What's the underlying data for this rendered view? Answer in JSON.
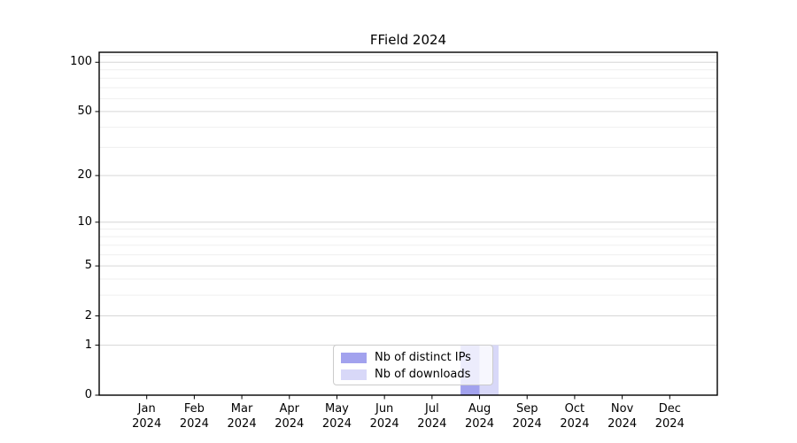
{
  "chart_data": {
    "type": "bar",
    "title": "FField 2024",
    "categories": [
      "Jan 2024",
      "Feb 2024",
      "Mar 2024",
      "Apr 2024",
      "May 2024",
      "Jun 2024",
      "Jul 2024",
      "Aug 2024",
      "Sep 2024",
      "Oct 2024",
      "Nov 2024",
      "Dec 2024"
    ],
    "series": [
      {
        "name": "Nb of distinct IPs",
        "color": "#a2a2ee",
        "values": [
          0,
          0,
          0,
          0,
          0,
          0,
          0,
          1,
          0,
          0,
          0,
          0
        ]
      },
      {
        "name": "Nb of downloads",
        "color": "#d8d8f8",
        "values": [
          0,
          0,
          0,
          0,
          0,
          0,
          0,
          1,
          0,
          0,
          0,
          0
        ]
      }
    ],
    "yscale": "log1p",
    "y_ticks": [
      0,
      1,
      2,
      5,
      10,
      20,
      50,
      100
    ],
    "y_minor_ticks": [
      3,
      4,
      6,
      7,
      8,
      9,
      30,
      40,
      60,
      70,
      80,
      90,
      110
    ],
    "ylim": [
      0,
      115
    ],
    "xlabel": "",
    "ylabel": "",
    "grid": true,
    "legend_position": "bottom-center",
    "colors": {
      "frame": "#000000",
      "major_grid": "#d6d6d6",
      "minor_grid": "#efefef",
      "text": "#000000"
    }
  }
}
